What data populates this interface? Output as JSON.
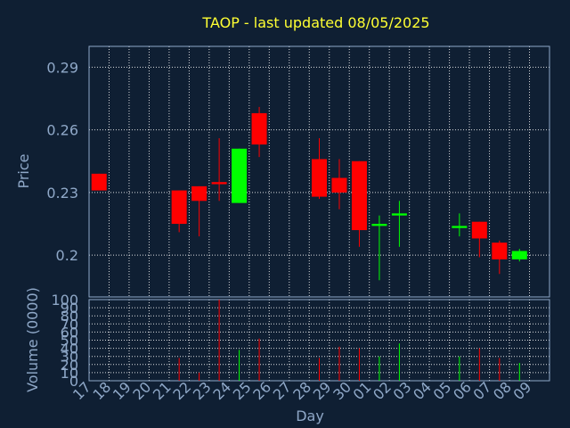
{
  "chart_data": {
    "type": "candlestick",
    "title": "TAOP - last updated 08/05/2025",
    "xlabel": "Day",
    "price_panel": {
      "ylabel": "Price",
      "yticks": [
        "0.2",
        "0.23",
        "0.26",
        "0.29"
      ],
      "ylim": [
        0.18,
        0.3
      ]
    },
    "volume_panel": {
      "ylabel": "Volume (0000)",
      "yticks": [
        "0",
        "10",
        "20",
        "30",
        "40",
        "50",
        "60",
        "70",
        "80",
        "90",
        "100"
      ],
      "ylim": [
        0,
        100
      ]
    },
    "x_tick_labels": [
      "17",
      "18",
      "19",
      "20",
      "21",
      "22",
      "23",
      "24",
      "25",
      "26",
      "27",
      "28",
      "29",
      "30",
      "01",
      "02",
      "03",
      "04",
      "05",
      "06",
      "07",
      "08",
      "09"
    ],
    "colors": {
      "up": "#00ff00",
      "down": "#ff0000"
    },
    "candles": [
      {
        "day": "17",
        "open": 0.239,
        "close": 0.231,
        "high": 0.239,
        "low": 0.231,
        "volume": 0
      },
      {
        "day": "21",
        "open": 0.231,
        "close": 0.215,
        "high": 0.231,
        "low": 0.211,
        "volume": 28
      },
      {
        "day": "22",
        "open": 0.233,
        "close": 0.226,
        "high": 0.233,
        "low": 0.209,
        "volume": 10
      },
      {
        "day": "23",
        "open": 0.235,
        "close": 0.234,
        "high": 0.256,
        "low": 0.226,
        "volume": 100
      },
      {
        "day": "24",
        "open": 0.225,
        "close": 0.251,
        "high": 0.251,
        "low": 0.225,
        "volume": 38
      },
      {
        "day": "25",
        "open": 0.268,
        "close": 0.253,
        "high": 0.271,
        "low": 0.247,
        "volume": 52
      },
      {
        "day": "28",
        "open": 0.246,
        "close": 0.228,
        "high": 0.256,
        "low": 0.227,
        "volume": 28
      },
      {
        "day": "29",
        "open": 0.237,
        "close": 0.23,
        "high": 0.246,
        "low": 0.222,
        "volume": 42
      },
      {
        "day": "30",
        "open": 0.245,
        "close": 0.212,
        "high": 0.245,
        "low": 0.204,
        "volume": 40
      },
      {
        "day": "01",
        "open": 0.214,
        "close": 0.215,
        "high": 0.219,
        "low": 0.188,
        "volume": 30
      },
      {
        "day": "02",
        "open": 0.219,
        "close": 0.22,
        "high": 0.226,
        "low": 0.204,
        "volume": 46
      },
      {
        "day": "05",
        "open": 0.213,
        "close": 0.214,
        "high": 0.22,
        "low": 0.209,
        "volume": 30
      },
      {
        "day": "06",
        "open": 0.216,
        "close": 0.208,
        "high": 0.216,
        "low": 0.199,
        "volume": 40
      },
      {
        "day": "07",
        "open": 0.206,
        "close": 0.198,
        "high": 0.207,
        "low": 0.191,
        "volume": 28
      },
      {
        "day": "08",
        "open": 0.198,
        "close": 0.202,
        "high": 0.203,
        "low": 0.197,
        "volume": 22
      }
    ]
  }
}
